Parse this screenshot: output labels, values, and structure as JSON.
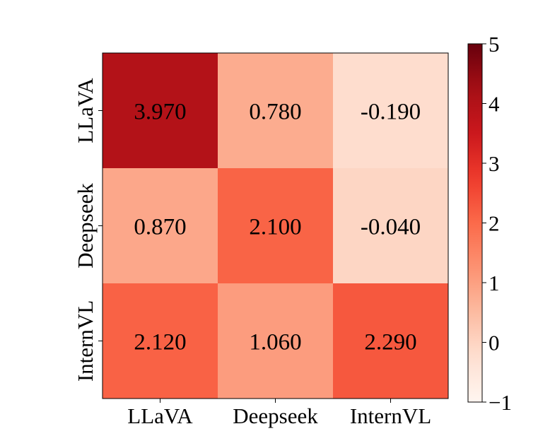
{
  "chart_data": {
    "type": "heatmap",
    "title": "",
    "rows": [
      "LLaVA",
      "Deepseek",
      "InternVL"
    ],
    "columns": [
      "LLaVA",
      "Deepseek",
      "InternVL"
    ],
    "values": [
      [
        3.97,
        0.78,
        -0.19
      ],
      [
        0.87,
        2.1,
        -0.04
      ],
      [
        2.12,
        1.06,
        2.29
      ]
    ],
    "cell_labels": [
      [
        "3.970",
        "0.780",
        "-0.190"
      ],
      [
        "0.870",
        "2.100",
        "-0.040"
      ],
      [
        "2.120",
        "1.060",
        "2.290"
      ]
    ],
    "colormap": "Reds",
    "colorbar": {
      "range": [
        -1,
        5
      ],
      "ticks": [
        -1,
        0,
        1,
        2,
        3,
        4,
        5
      ],
      "tick_labels": [
        "−1",
        "0",
        "1",
        "2",
        "3",
        "4",
        "5"
      ]
    },
    "colors": {
      "low": "#fff5f0",
      "high": "#67000d"
    }
  }
}
